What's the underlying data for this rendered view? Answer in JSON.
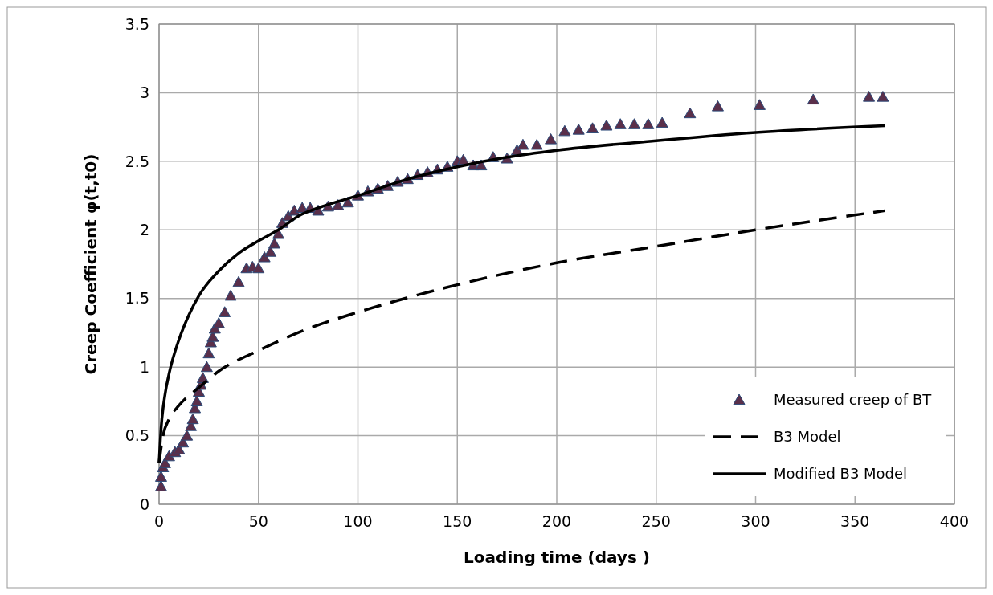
{
  "chart_data": {
    "type": "line",
    "xlabel": "Loading time (days )",
    "ylabel": "Creep Coefficient φ(t,t0)",
    "xlim": [
      0,
      400
    ],
    "xticks": [
      0,
      50,
      100,
      150,
      200,
      250,
      300,
      350,
      400
    ],
    "ylim": [
      0,
      3.5
    ],
    "yticks": [
      0,
      0.5,
      1,
      1.5,
      2,
      2.5,
      3,
      3.5
    ],
    "grid": true,
    "legend": "bottom right",
    "series": [
      {
        "name": "Measured creep of BT",
        "type": "scatter",
        "marker": "triangle",
        "color": "#5a2f4a",
        "x": [
          1,
          1,
          2,
          3,
          5,
          8,
          10,
          12,
          14,
          16,
          17,
          18,
          19,
          20,
          21,
          22,
          24,
          25,
          26,
          27,
          28,
          30,
          33,
          36,
          40,
          44,
          47,
          50,
          53,
          56,
          58,
          60,
          62,
          65,
          68,
          72,
          76,
          80,
          85,
          90,
          95,
          100,
          105,
          110,
          115,
          120,
          125,
          130,
          135,
          140,
          145,
          150,
          153,
          158,
          162,
          168,
          175,
          180,
          183,
          190,
          197,
          204,
          211,
          218,
          225,
          232,
          239,
          246,
          253,
          267,
          281,
          302,
          329,
          357,
          364
        ],
        "values": [
          0.13,
          0.2,
          0.27,
          0.3,
          0.35,
          0.38,
          0.4,
          0.45,
          0.5,
          0.57,
          0.62,
          0.7,
          0.75,
          0.82,
          0.87,
          0.92,
          1.0,
          1.1,
          1.18,
          1.22,
          1.28,
          1.32,
          1.4,
          1.52,
          1.62,
          1.72,
          1.73,
          1.72,
          1.8,
          1.84,
          1.9,
          1.97,
          2.05,
          2.1,
          2.14,
          2.16,
          2.16,
          2.14,
          2.17,
          2.18,
          2.2,
          2.25,
          2.28,
          2.3,
          2.32,
          2.35,
          2.37,
          2.4,
          2.42,
          2.44,
          2.46,
          2.5,
          2.51,
          2.47,
          2.47,
          2.53,
          2.52,
          2.58,
          2.62,
          2.62,
          2.66,
          2.72,
          2.73,
          2.74,
          2.76,
          2.77,
          2.77,
          2.77,
          2.78,
          2.85,
          2.9,
          2.91,
          2.95,
          2.97,
          2.97
        ]
      },
      {
        "name": "B3 Model",
        "type": "line",
        "line_style": "dashed",
        "marker": "none",
        "color": "#000000",
        "x": [
          0,
          2,
          5,
          10,
          20,
          30,
          50,
          75,
          100,
          150,
          200,
          250,
          300,
          365
        ],
        "values": [
          0.3,
          0.5,
          0.62,
          0.72,
          0.85,
          0.97,
          1.12,
          1.28,
          1.4,
          1.6,
          1.76,
          1.88,
          2.0,
          2.14
        ]
      },
      {
        "name": "Modified B3 Model",
        "type": "line",
        "line_style": "solid",
        "marker": "none",
        "color": "#000000",
        "x": [
          0,
          1,
          3,
          5,
          10,
          15,
          20,
          30,
          40,
          50,
          60,
          70,
          80,
          100,
          125,
          150,
          175,
          200,
          250,
          300,
          365
        ],
        "values": [
          0.3,
          0.55,
          0.8,
          0.95,
          1.2,
          1.38,
          1.52,
          1.7,
          1.83,
          1.92,
          2.0,
          2.1,
          2.16,
          2.25,
          2.37,
          2.46,
          2.53,
          2.58,
          2.65,
          2.71,
          2.76
        ]
      }
    ]
  }
}
